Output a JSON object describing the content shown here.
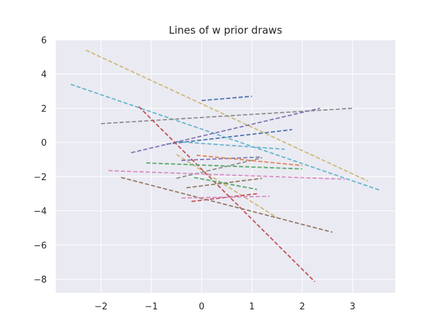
{
  "chart_data": {
    "type": "line",
    "title": "Lines of w prior draws",
    "xlabel": "",
    "ylabel": "",
    "xlim": [
      -2.9,
      3.85
    ],
    "ylim": [
      -8.8,
      6.0
    ],
    "xticks": [
      -2,
      -1,
      0,
      1,
      2,
      3
    ],
    "yticks": [
      -8,
      -6,
      -4,
      -2,
      0,
      2,
      4,
      6
    ],
    "xtick_labels": [
      "−2",
      "−1",
      "0",
      "1",
      "2",
      "3"
    ],
    "ytick_labels": [
      "−8",
      "−6",
      "−4",
      "−2",
      "0",
      "2",
      "4",
      "6"
    ],
    "grid": true,
    "line_style": "dashed",
    "series": [
      {
        "x": [
          0.0,
          1.0
        ],
        "y": [
          2.45,
          2.7
        ],
        "color": "#4c72b0"
      },
      {
        "x": [
          -0.7,
          1.8
        ],
        "y": [
          -0.1,
          0.75
        ],
        "color": "#4c72b0"
      },
      {
        "x": [
          -2.3,
          3.3
        ],
        "y": [
          5.4,
          -2.25
        ],
        "color": "#ccb974"
      },
      {
        "x": [
          -0.5,
          1.5
        ],
        "y": [
          -0.7,
          -4.4
        ],
        "color": "#ccb974"
      },
      {
        "x": [
          -2.6,
          3.55
        ],
        "y": [
          3.4,
          -2.8
        ],
        "color": "#64b5cd"
      },
      {
        "x": [
          -0.5,
          1.65
        ],
        "y": [
          0.05,
          -0.4
        ],
        "color": "#64b5cd"
      },
      {
        "x": [
          -2.0,
          3.0
        ],
        "y": [
          1.1,
          2.0
        ],
        "color": "#8c8c8c"
      },
      {
        "x": [
          -0.5,
          1.2
        ],
        "y": [
          -2.1,
          -0.9
        ],
        "color": "#8c8c8c"
      },
      {
        "x": [
          -1.4,
          2.35
        ],
        "y": [
          -0.6,
          2.0
        ],
        "color": "#8172b3"
      },
      {
        "x": [
          -0.4,
          1.2
        ],
        "y": [
          -1.05,
          -0.85
        ],
        "color": "#8172b3"
      },
      {
        "x": [
          -1.25,
          2.25
        ],
        "y": [
          2.1,
          -8.15
        ],
        "color": "#c44e52"
      },
      {
        "x": [
          -0.2,
          1.1
        ],
        "y": [
          -3.45,
          -3.0
        ],
        "color": "#c44e52"
      },
      {
        "x": [
          -1.6,
          2.6
        ],
        "y": [
          -2.05,
          -5.25
        ],
        "color": "#937860"
      },
      {
        "x": [
          -0.3,
          1.2
        ],
        "y": [
          -2.65,
          -2.1
        ],
        "color": "#937860"
      },
      {
        "x": [
          -1.85,
          2.85
        ],
        "y": [
          -1.65,
          -2.15
        ],
        "color": "#da8bc3"
      },
      {
        "x": [
          -0.4,
          1.35
        ],
        "y": [
          -3.25,
          -3.15
        ],
        "color": "#da8bc3"
      },
      {
        "x": [
          -1.1,
          2.0
        ],
        "y": [
          -1.2,
          -1.55
        ],
        "color": "#55a868"
      },
      {
        "x": [
          -0.15,
          1.1
        ],
        "y": [
          -2.05,
          -2.75
        ],
        "color": "#55a868"
      },
      {
        "x": [
          -0.1,
          2.0
        ],
        "y": [
          -0.75,
          -1.35
        ],
        "color": "#dd8452"
      }
    ]
  }
}
